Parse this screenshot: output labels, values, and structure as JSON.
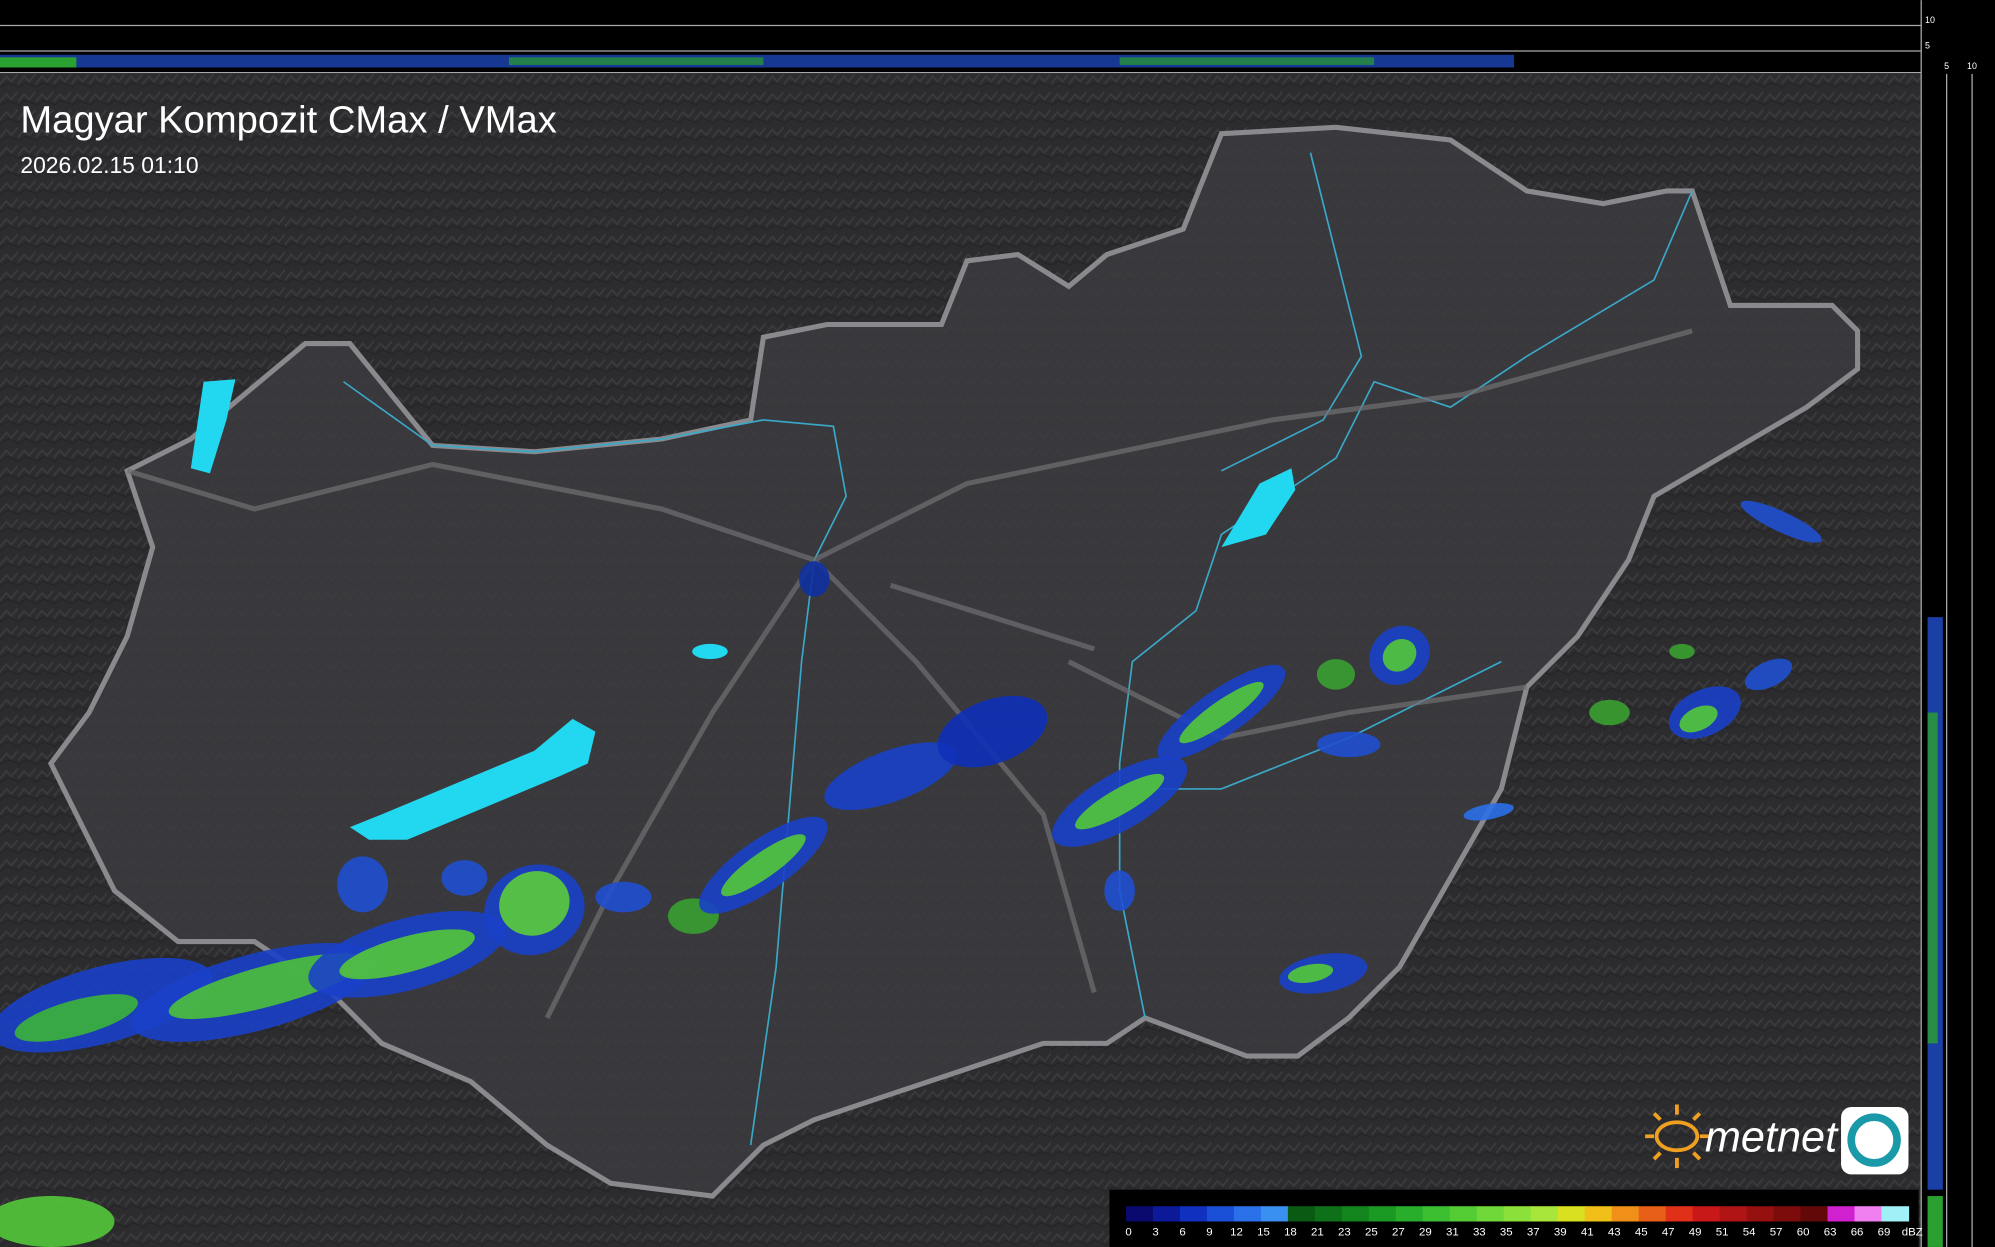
{
  "header": {
    "title": "Magyar Kompozit CMax / VMax",
    "timestamp": "2026.02.15 01:10"
  },
  "legend": {
    "unit": "dBZ",
    "ticks": [
      0,
      3,
      6,
      9,
      12,
      15,
      18,
      21,
      23,
      25,
      27,
      29,
      31,
      33,
      35,
      37,
      39,
      41,
      43,
      45,
      47,
      49,
      51,
      54,
      57,
      60,
      63,
      66,
      69
    ],
    "colors": [
      "#0a0a6e",
      "#0c1a9a",
      "#1030c0",
      "#1a50d8",
      "#2a70e8",
      "#3a90f0",
      "#0a5a14",
      "#0e7018",
      "#12861c",
      "#1a9a22",
      "#28ae2a",
      "#3cc032",
      "#54cc34",
      "#70d838",
      "#8ce03a",
      "#a8e63c",
      "#d8e020",
      "#f0c018",
      "#f09018",
      "#e86018",
      "#e03018",
      "#c81818",
      "#b01414",
      "#961010",
      "#7c0c0c",
      "#620808",
      "#d020d0",
      "#f080f0",
      "#a0f0f8"
    ]
  },
  "brand": {
    "name": "metnet"
  },
  "side_scale": {
    "top_ticks": [
      10,
      5
    ],
    "bottom_ticks": [
      5,
      10
    ]
  }
}
